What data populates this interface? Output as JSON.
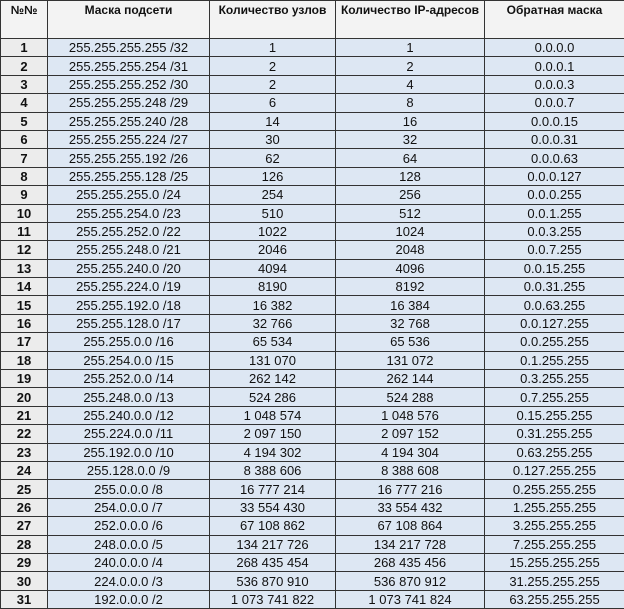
{
  "headers": [
    "№№",
    "Маска подсети",
    "Количество узлов",
    "Количество IP-адресов",
    "Обратная маска"
  ],
  "rows": [
    [
      "1",
      "255.255.255.255 /32",
      "1",
      "1",
      "0.0.0.0"
    ],
    [
      "2",
      "255.255.255.254 /31",
      "2",
      "2",
      "0.0.0.1"
    ],
    [
      "3",
      "255.255.255.252 /30",
      "2",
      "4",
      "0.0.0.3"
    ],
    [
      "4",
      "255.255.255.248 /29",
      "6",
      "8",
      "0.0.0.7"
    ],
    [
      "5",
      "255.255.255.240 /28",
      "14",
      "16",
      "0.0.0.15"
    ],
    [
      "6",
      "255.255.255.224 /27",
      "30",
      "32",
      "0.0.0.31"
    ],
    [
      "7",
      "255.255.255.192 /26",
      "62",
      "64",
      "0.0.0.63"
    ],
    [
      "8",
      "255.255.255.128 /25",
      "126",
      "128",
      "0.0.0.127"
    ],
    [
      "9",
      "255.255.255.0 /24",
      "254",
      "256",
      "0.0.0.255"
    ],
    [
      "10",
      "255.255.254.0 /23",
      "510",
      "512",
      "0.0.1.255"
    ],
    [
      "11",
      "255.255.252.0 /22",
      "1022",
      "1024",
      "0.0.3.255"
    ],
    [
      "12",
      "255.255.248.0 /21",
      "2046",
      "2048",
      "0.0.7.255"
    ],
    [
      "13",
      "255.255.240.0 /20",
      "4094",
      "4096",
      "0.0.15.255"
    ],
    [
      "14",
      "255.255.224.0 /19",
      "8190",
      "8192",
      "0.0.31.255"
    ],
    [
      "15",
      "255.255.192.0 /18",
      "16 382",
      "16 384",
      "0.0.63.255"
    ],
    [
      "16",
      "255.255.128.0 /17",
      "32 766",
      "32 768",
      "0.0.127.255"
    ],
    [
      "17",
      "255.255.0.0 /16",
      "65 534",
      "65 536",
      "0.0.255.255"
    ],
    [
      "18",
      "255.254.0.0 /15",
      "131 070",
      "131 072",
      "0.1.255.255"
    ],
    [
      "19",
      "255.252.0.0 /14",
      "262 142",
      "262 144",
      "0.3.255.255"
    ],
    [
      "20",
      "255.248.0.0 /13",
      "524 286",
      "524 288",
      "0.7.255.255"
    ],
    [
      "21",
      "255.240.0.0 /12",
      "1 048 574",
      "1 048 576",
      "0.15.255.255"
    ],
    [
      "22",
      "255.224.0.0 /11",
      "2 097 150",
      "2 097 152",
      "0.31.255.255"
    ],
    [
      "23",
      "255.192.0.0 /10",
      "4 194 302",
      "4 194 304",
      "0.63.255.255"
    ],
    [
      "24",
      "255.128.0.0 /9",
      "8 388 606",
      "8 388 608",
      "0.127.255.255"
    ],
    [
      "25",
      "255.0.0.0 /8",
      "16 777 214",
      "16 777 216",
      "0.255.255.255"
    ],
    [
      "26",
      "254.0.0.0 /7",
      "33 554 430",
      "33 554 432",
      "1.255.255.255"
    ],
    [
      "27",
      "252.0.0.0 /6",
      "67 108 862",
      "67 108 864",
      "3.255.255.255"
    ],
    [
      "28",
      "248.0.0.0 /5",
      "134 217 726",
      "134 217 728",
      "7.255.255.255"
    ],
    [
      "29",
      "240.0.0.0 /4",
      "268 435 454",
      "268 435 456",
      "15.255.255.255"
    ],
    [
      "30",
      "224.0.0.0 /3",
      "536 870 910",
      "536 870 912",
      "31.255.255.255"
    ],
    [
      "31",
      "192.0.0.0 /2",
      "1 073 741 822",
      "1 073 741 824",
      "63.255.255.255"
    ]
  ]
}
